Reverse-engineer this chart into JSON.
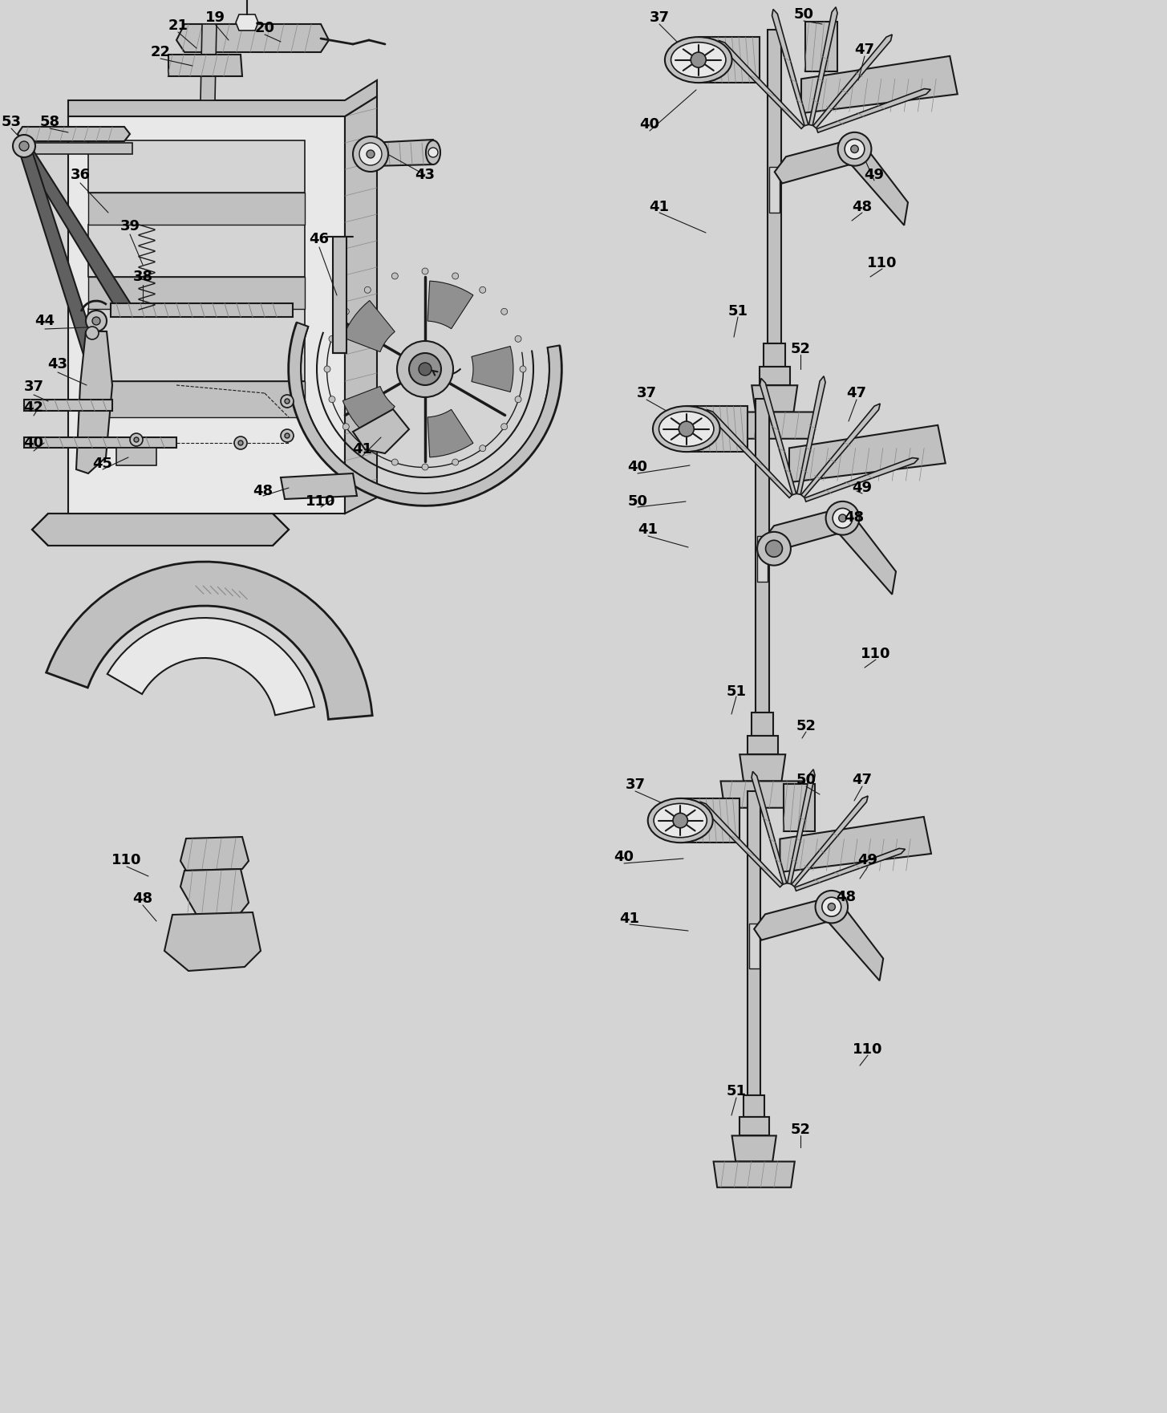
{
  "bg": "#d4d4d4",
  "lc": "#1a1a1a",
  "fc_light": "#e8e8e8",
  "fc_mid": "#c0c0c0",
  "fc_dark": "#909090",
  "fc_darker": "#606060",
  "figsize": [
    14.55,
    17.61
  ],
  "dpi": 100,
  "xlim": [
    0,
    1455
  ],
  "ylim": [
    1761,
    0
  ],
  "label_fs": 13,
  "label_fw": "bold"
}
